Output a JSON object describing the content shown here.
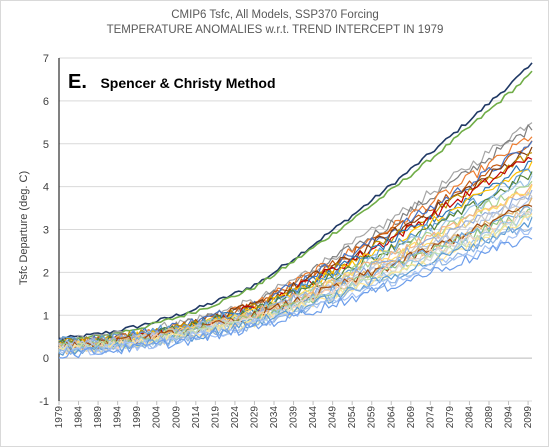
{
  "header": {
    "title_line1": "CMIP6 Tsfc, All Models, SSP370 Forcing",
    "title_line2": "TEMPERATURE ANOMALIES w.r.t. TREND INTERCEPT IN 1979"
  },
  "panel": {
    "letter": "E.",
    "label": "Spencer & Christy Method"
  },
  "chart_data": {
    "type": "line",
    "title": "CMIP6 Tsfc, All Models, SSP370 Forcing / TEMPERATURE ANOMALIES w.r.t. TREND INTERCEPT IN 1979",
    "xlabel": "",
    "ylabel": "Tsfc Departure (deg. C)",
    "xlim": [
      1979,
      2100
    ],
    "ylim": [
      -1,
      7
    ],
    "yticks": [
      -1,
      0,
      1,
      2,
      3,
      4,
      5,
      6,
      7
    ],
    "xticks": [
      1979,
      1984,
      1989,
      1994,
      1999,
      2004,
      2009,
      2014,
      2019,
      2024,
      2029,
      2034,
      2039,
      2044,
      2049,
      2054,
      2059,
      2064,
      2069,
      2074,
      2079,
      2084,
      2089,
      2094,
      2099
    ],
    "grid": "horizontal",
    "legend": "none",
    "series_note": "approximately 40 model runs; values are start (1979), mid (2030) and end (2100) anomalies in deg C",
    "series": [
      {
        "color": "#1f3864",
        "values_1979_2030_2100": [
          0.45,
          1.75,
          6.85
        ]
      },
      {
        "color": "#70ad47",
        "values_1979_2030_2100": [
          0.4,
          1.7,
          6.65
        ]
      },
      {
        "color": "#a5a5a5",
        "values_1979_2030_2100": [
          0.4,
          1.35,
          5.55
        ]
      },
      {
        "color": "#7f7f7f",
        "values_1979_2030_2100": [
          0.35,
          1.3,
          5.4
        ]
      },
      {
        "color": "#ed7d31",
        "values_1979_2030_2100": [
          0.3,
          1.3,
          5.2
        ]
      },
      {
        "color": "#c55a11",
        "values_1979_2030_2100": [
          0.3,
          1.25,
          5.05
        ]
      },
      {
        "color": "#4472c4",
        "values_1979_2030_2100": [
          0.35,
          1.3,
          5.0
        ]
      },
      {
        "color": "#843c0c",
        "values_1979_2030_2100": [
          0.3,
          1.25,
          4.9
        ]
      },
      {
        "color": "#bf9000",
        "values_1979_2030_2100": [
          0.35,
          1.2,
          4.8
        ]
      },
      {
        "color": "#c00000",
        "values_1979_2030_2100": [
          0.25,
          1.2,
          4.75
        ]
      },
      {
        "color": "#2e75b6",
        "values_1979_2030_2100": [
          0.3,
          1.2,
          4.6
        ]
      },
      {
        "color": "#ffc000",
        "values_1979_2030_2100": [
          0.3,
          1.15,
          4.5
        ]
      },
      {
        "color": "#5b9bd5",
        "values_1979_2030_2100": [
          0.4,
          1.15,
          4.4
        ]
      },
      {
        "color": "#548235",
        "values_1979_2030_2100": [
          0.3,
          1.15,
          4.3
        ]
      },
      {
        "color": "#9dc3e6",
        "values_1979_2030_2100": [
          0.3,
          1.1,
          4.2
        ]
      },
      {
        "color": "#a9d18e",
        "values_1979_2030_2100": [
          0.25,
          1.1,
          4.1
        ]
      },
      {
        "color": "#f4b183",
        "values_1979_2030_2100": [
          0.3,
          1.1,
          4.0
        ]
      },
      {
        "color": "#ffd966",
        "values_1979_2030_2100": [
          0.25,
          1.05,
          3.95
        ]
      },
      {
        "color": "#8faadc",
        "values_1979_2030_2100": [
          0.3,
          1.05,
          3.85
        ]
      },
      {
        "color": "#c9c9c9",
        "values_1979_2030_2100": [
          0.25,
          1.0,
          3.8
        ]
      },
      {
        "color": "#b4c7e7",
        "values_1979_2030_2100": [
          0.25,
          1.0,
          3.7
        ]
      },
      {
        "color": "#e2b36b",
        "values_1979_2030_2100": [
          0.2,
          1.0,
          3.65
        ]
      },
      {
        "color": "#9e480e",
        "values_1979_2030_2100": [
          0.25,
          1.0,
          3.6
        ]
      },
      {
        "color": "#6fa8dc",
        "values_1979_2030_2100": [
          0.2,
          0.95,
          3.55
        ]
      },
      {
        "color": "#93c47d",
        "values_1979_2030_2100": [
          0.25,
          0.95,
          3.5
        ]
      },
      {
        "color": "#f8cbad",
        "values_1979_2030_2100": [
          0.2,
          0.95,
          3.45
        ]
      },
      {
        "color": "#d9d9d9",
        "values_1979_2030_2100": [
          0.2,
          0.9,
          3.4
        ]
      },
      {
        "color": "#9fc5e8",
        "values_1979_2030_2100": [
          0.2,
          0.9,
          3.35
        ]
      },
      {
        "color": "#c5e0b4",
        "values_1979_2030_2100": [
          0.2,
          0.9,
          3.3
        ]
      },
      {
        "color": "#ffe699",
        "values_1979_2030_2100": [
          0.2,
          0.85,
          3.25
        ]
      },
      {
        "color": "#5b9bd5",
        "values_1979_2030_2100": [
          0.15,
          0.85,
          3.2
        ]
      },
      {
        "color": "#8eb4e3",
        "values_1979_2030_2100": [
          0.15,
          0.8,
          3.1
        ]
      },
      {
        "color": "#a4c2f4",
        "values_1979_2030_2100": [
          0.15,
          0.8,
          3.0
        ]
      },
      {
        "color": "#6d9eeb",
        "values_1979_2030_2100": [
          0.1,
          0.75,
          2.85
        ]
      }
    ]
  }
}
